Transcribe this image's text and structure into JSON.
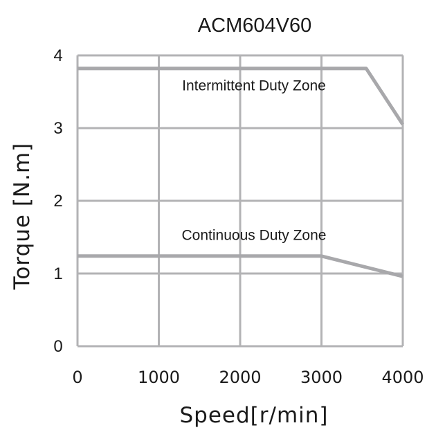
{
  "chart_data": {
    "type": "line",
    "title": "ACM604V60",
    "xlabel": "Speed[r/min]",
    "ylabel": "Torque [N.m]",
    "xlim": [
      0,
      4000
    ],
    "ylim": [
      0,
      4
    ],
    "x_ticks": [
      "0",
      "1000",
      "2000",
      "3000",
      "4000"
    ],
    "y_ticks": [
      "0",
      "1",
      "2",
      "3",
      "4"
    ],
    "grid": true,
    "legend": "none",
    "series": [
      {
        "name": "Intermittent Duty Zone",
        "x": [
          0,
          3550,
          4000
        ],
        "y": [
          3.82,
          3.82,
          3.05
        ]
      },
      {
        "name": "Continuous Duty Zone",
        "x": [
          0,
          3000,
          4000
        ],
        "y": [
          1.24,
          1.24,
          0.96
        ]
      }
    ],
    "annotations": [
      {
        "text": "Intermittent Duty Zone",
        "x": 2000,
        "y": 3.52
      },
      {
        "text": "Continuous Duty Zone",
        "x": 2000,
        "y": 1.46
      }
    ],
    "colors": {
      "grid": "#b3b3b5",
      "series": "#a8a8ab",
      "text": "#1a1a1a"
    }
  }
}
